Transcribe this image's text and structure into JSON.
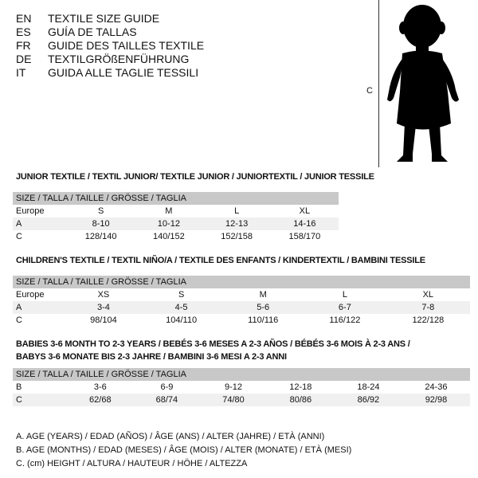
{
  "languages": [
    {
      "code": "EN",
      "title": "TEXTILE SIZE GUIDE"
    },
    {
      "code": "ES",
      "title": "GUÍA DE TALLAS"
    },
    {
      "code": "FR",
      "title": "GUIDE DES TAILLES TEXTILE"
    },
    {
      "code": "DE",
      "title": "TEXTILGRÖßENFÜHRUNG"
    },
    {
      "code": "IT",
      "title": "GUIDA ALLE TAGLIE TESSILI"
    }
  ],
  "figure": {
    "measure_label": "C"
  },
  "sections": [
    {
      "title": "JUNIOR TEXTILE / TEXTIL JUNIOR/ TEXTILE JUNIOR / JUNIORTEXTIL / JUNIOR TESSILE",
      "header": "SIZE / TALLA / TAILLE / GRÖSSE / TAGLIA",
      "rows": [
        [
          "Europe",
          "S",
          "M",
          "L",
          "XL"
        ],
        [
          "A",
          "8-10",
          "10-12",
          "12-13",
          "14-16"
        ],
        [
          "C",
          "128/140",
          "140/152",
          "152/158",
          "158/170"
        ]
      ]
    },
    {
      "title": "CHILDREN'S TEXTILE / TEXTIL NIÑO/A / TEXTILE DES ENFANTS / KINDERTEXTIL / BAMBINI TESSILE",
      "header": "SIZE / TALLA / TAILLE / GRÖSSE / TAGLIA",
      "rows": [
        [
          "Europe",
          "XS",
          "S",
          "M",
          "L",
          "XL"
        ],
        [
          "A",
          "3-4",
          "4-5",
          "5-6",
          "6-7",
          "7-8"
        ],
        [
          "C",
          "98/104",
          "104/110",
          "110/116",
          "116/122",
          "122/128"
        ]
      ]
    },
    {
      "title": "BABIES 3-6 MONTH TO 2-3 YEARS / BEBÉS 3-6 MESES A 2-3 AÑOS / BÉBÉS 3-6 MOIS À 2-3 ANS /",
      "title2": "BABYS 3-6 MONATE BIS 2-3 JAHRE / BAMBINI 3-6 MESI A 2-3 ANNI",
      "header": "SIZE / TALLA / TAILLE / GRÖSSE / TAGLIA",
      "rows": [
        [
          "B",
          "3-6",
          "6-9",
          "9-12",
          "12-18",
          "18-24",
          "24-36"
        ],
        [
          "C",
          "62/68",
          "68/74",
          "74/80",
          "80/86",
          "86/92",
          "92/98"
        ]
      ]
    }
  ],
  "notes": [
    "A. AGE (YEARS) / EDAD (AÑOS) / ÂGE (ANS) / ALTER (JAHRE) / ETÀ (ANNI)",
    "B. AGE (MONTHS) / EDAD (MESES) / ÂGE (MOIS) / ALTER (MONATE) / ETÀ (MESI)",
    "C. (cm) HEIGHT / ALTURA / HAUTEUR / HÖHE / ALTEZZA"
  ]
}
